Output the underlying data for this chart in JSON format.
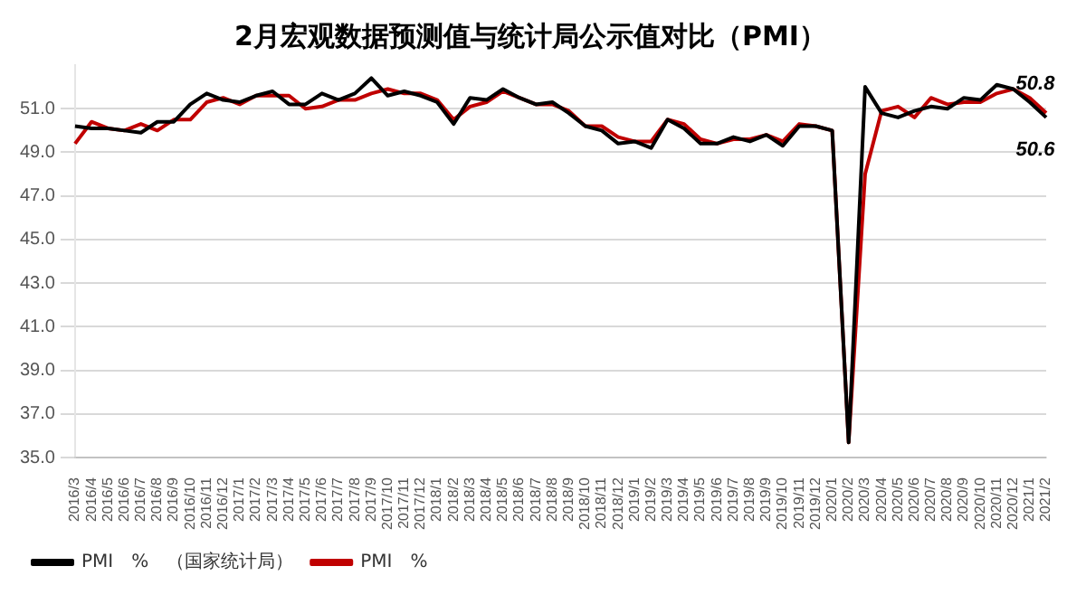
{
  "chart_data": {
    "type": "line",
    "title": "2月宏观数据预测值与统计局公示值对比（PMI）",
    "categories": [
      "2016/3",
      "2016/4",
      "2016/5",
      "2016/6",
      "2016/7",
      "2016/8",
      "2016/9",
      "2016/10",
      "2016/11",
      "2016/12",
      "2017/1",
      "2017/2",
      "2017/3",
      "2017/4",
      "2017/5",
      "2017/6",
      "2017/7",
      "2017/8",
      "2017/9",
      "2017/10",
      "2017/11",
      "2017/12",
      "2018/1",
      "2018/2",
      "2018/3",
      "2018/4",
      "2018/5",
      "2018/6",
      "2018/7",
      "2018/8",
      "2018/9",
      "2018/10",
      "2018/11",
      "2018/12",
      "2019/1",
      "2019/2",
      "2019/3",
      "2019/4",
      "2019/5",
      "2019/6",
      "2019/7",
      "2019/8",
      "2019/9",
      "2019/10",
      "2019/11",
      "2019/12",
      "2020/1",
      "2020/2",
      "2020/3",
      "2020/4",
      "2020/5",
      "2020/6",
      "2020/7",
      "2020/8",
      "2020/9",
      "2020/10",
      "2020/11",
      "2020/12",
      "2021/1",
      "2021/2"
    ],
    "series": [
      {
        "name": "PMI　%　（国家统计局）",
        "color": "#000000",
        "values": [
          50.2,
          50.1,
          50.1,
          50.0,
          49.9,
          50.4,
          50.4,
          51.2,
          51.7,
          51.4,
          51.3,
          51.6,
          51.8,
          51.2,
          51.2,
          51.7,
          51.4,
          51.7,
          52.4,
          51.6,
          51.8,
          51.6,
          51.3,
          50.3,
          51.5,
          51.4,
          51.9,
          51.5,
          51.2,
          51.3,
          50.8,
          50.2,
          50.0,
          49.4,
          49.5,
          49.2,
          50.5,
          50.1,
          49.4,
          49.4,
          49.7,
          49.5,
          49.8,
          49.3,
          50.2,
          50.2,
          50.0,
          35.7,
          52.0,
          50.8,
          50.6,
          50.9,
          51.1,
          51.0,
          51.5,
          51.4,
          52.1,
          51.9,
          51.3,
          50.6
        ]
      },
      {
        "name": "PMI　%",
        "color": "#c00000",
        "values": [
          49.4,
          50.4,
          50.1,
          50.0,
          50.3,
          50.0,
          50.5,
          50.5,
          51.3,
          51.5,
          51.2,
          51.6,
          51.6,
          51.6,
          51.0,
          51.1,
          51.4,
          51.4,
          51.7,
          51.9,
          51.7,
          51.7,
          51.4,
          50.5,
          51.1,
          51.3,
          51.8,
          51.5,
          51.2,
          51.2,
          50.9,
          50.2,
          50.2,
          49.7,
          49.5,
          49.5,
          50.5,
          50.3,
          49.6,
          49.4,
          49.6,
          49.6,
          49.8,
          49.5,
          50.3,
          50.2,
          50.0,
          35.7,
          48.0,
          50.9,
          51.1,
          50.6,
          51.5,
          51.2,
          51.3,
          51.3,
          51.7,
          51.9,
          51.5,
          50.8
        ]
      }
    ],
    "ylim": [
      35,
      53
    ],
    "yticks": [
      {
        "value": 35,
        "label": "35.0"
      },
      {
        "value": 37,
        "label": "37.0"
      },
      {
        "value": 39,
        "label": "39.0"
      },
      {
        "value": 41,
        "label": "41.0"
      },
      {
        "value": 43,
        "label": "43.0"
      },
      {
        "value": 45,
        "label": "45.0"
      },
      {
        "value": 47,
        "label": "47.0"
      },
      {
        "value": 49,
        "label": "49.0"
      },
      {
        "value": 51,
        "label": "51.0"
      }
    ],
    "annotations": [
      {
        "text": "50.8",
        "x": "2021/2",
        "y": 50.8
      },
      {
        "text": "50.6",
        "x": "2021/2",
        "y": 50.6
      }
    ],
    "grid": "y",
    "legend": "bottom left",
    "marker": "none",
    "line_style": "solid"
  }
}
